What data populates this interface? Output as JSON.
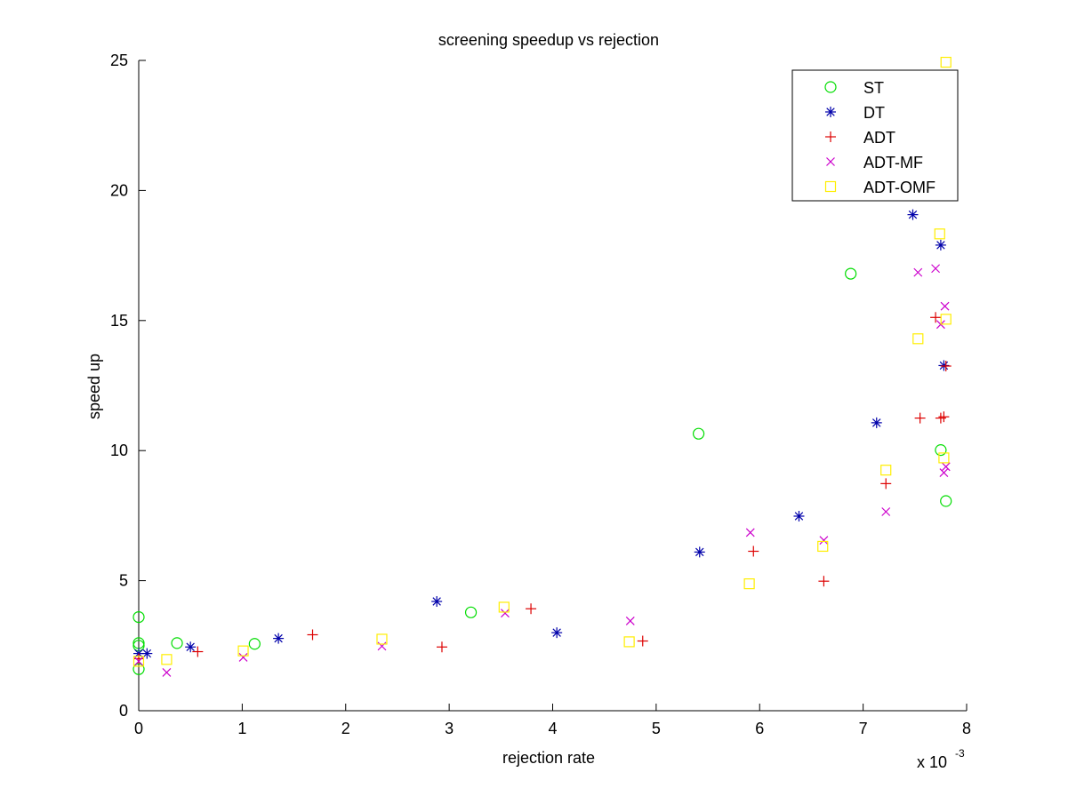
{
  "chart_data": {
    "type": "scatter",
    "title": "screening speedup vs rejection",
    "xlabel": "rejection rate",
    "ylabel": "speed up",
    "x_multiplier_label": "x 10",
    "x_multiplier_exponent": "-3",
    "xlim": [
      0,
      8
    ],
    "ylim": [
      0,
      25
    ],
    "xticks": [
      0,
      1,
      2,
      3,
      4,
      5,
      6,
      7,
      8
    ],
    "yticks": [
      0,
      5,
      10,
      15,
      20,
      25
    ],
    "grid": false,
    "legend_position": "top-right",
    "series": [
      {
        "name": "ST",
        "marker": "circle",
        "color": "#00dd00",
        "points": [
          [
            0.0,
            3.6
          ],
          [
            0.0,
            2.6
          ],
          [
            0.0,
            2.5
          ],
          [
            0.0,
            1.6
          ],
          [
            0.37,
            2.6
          ],
          [
            1.12,
            2.57
          ],
          [
            3.21,
            3.78
          ],
          [
            5.41,
            10.65
          ],
          [
            6.88,
            16.8
          ],
          [
            7.75,
            10.02
          ],
          [
            7.8,
            8.06
          ]
        ]
      },
      {
        "name": "DT",
        "marker": "asterisk",
        "color": "#0000aa",
        "points": [
          [
            0.0,
            2.2
          ],
          [
            0.08,
            2.2
          ],
          [
            0.5,
            2.45
          ],
          [
            1.35,
            2.78
          ],
          [
            2.88,
            4.2
          ],
          [
            4.04,
            3.0
          ],
          [
            5.42,
            6.1
          ],
          [
            6.38,
            7.48
          ],
          [
            7.13,
            11.07
          ],
          [
            7.48,
            19.07
          ],
          [
            7.75,
            17.9
          ],
          [
            7.78,
            13.27
          ]
        ]
      },
      {
        "name": "ADT",
        "marker": "plus",
        "color": "#dd0000",
        "points": [
          [
            0.0,
            2.0
          ],
          [
            0.57,
            2.27
          ],
          [
            1.68,
            2.92
          ],
          [
            2.93,
            2.45
          ],
          [
            3.79,
            3.92
          ],
          [
            4.87,
            2.68
          ],
          [
            5.94,
            6.13
          ],
          [
            6.62,
            4.98
          ],
          [
            7.22,
            8.73
          ],
          [
            7.55,
            11.25
          ],
          [
            7.7,
            15.12
          ],
          [
            7.75,
            11.25
          ],
          [
            7.78,
            11.3
          ],
          [
            7.8,
            13.25
          ]
        ]
      },
      {
        "name": "ADT-MF",
        "marker": "x",
        "color": "#cc00cc",
        "points": [
          [
            0.0,
            1.9
          ],
          [
            0.27,
            1.47
          ],
          [
            1.01,
            2.05
          ],
          [
            2.35,
            2.48
          ],
          [
            3.54,
            3.75
          ],
          [
            4.75,
            3.45
          ],
          [
            5.91,
            6.85
          ],
          [
            6.62,
            6.55
          ],
          [
            7.22,
            7.65
          ],
          [
            7.53,
            16.85
          ],
          [
            7.7,
            17.0
          ],
          [
            7.75,
            14.85
          ],
          [
            7.79,
            15.55
          ],
          [
            7.78,
            9.15
          ],
          [
            7.8,
            9.38
          ]
        ]
      },
      {
        "name": "ADT-OMF",
        "marker": "square",
        "color": "#ffee00",
        "points": [
          [
            0.0,
            1.9
          ],
          [
            0.27,
            1.97
          ],
          [
            1.01,
            2.3
          ],
          [
            2.35,
            2.75
          ],
          [
            3.53,
            3.98
          ],
          [
            4.74,
            2.65
          ],
          [
            5.9,
            4.88
          ],
          [
            6.61,
            6.32
          ],
          [
            7.22,
            9.25
          ],
          [
            7.53,
            14.3
          ],
          [
            7.74,
            18.33
          ],
          [
            7.78,
            9.72
          ],
          [
            7.8,
            15.05
          ],
          [
            7.8,
            24.93
          ]
        ]
      }
    ]
  }
}
